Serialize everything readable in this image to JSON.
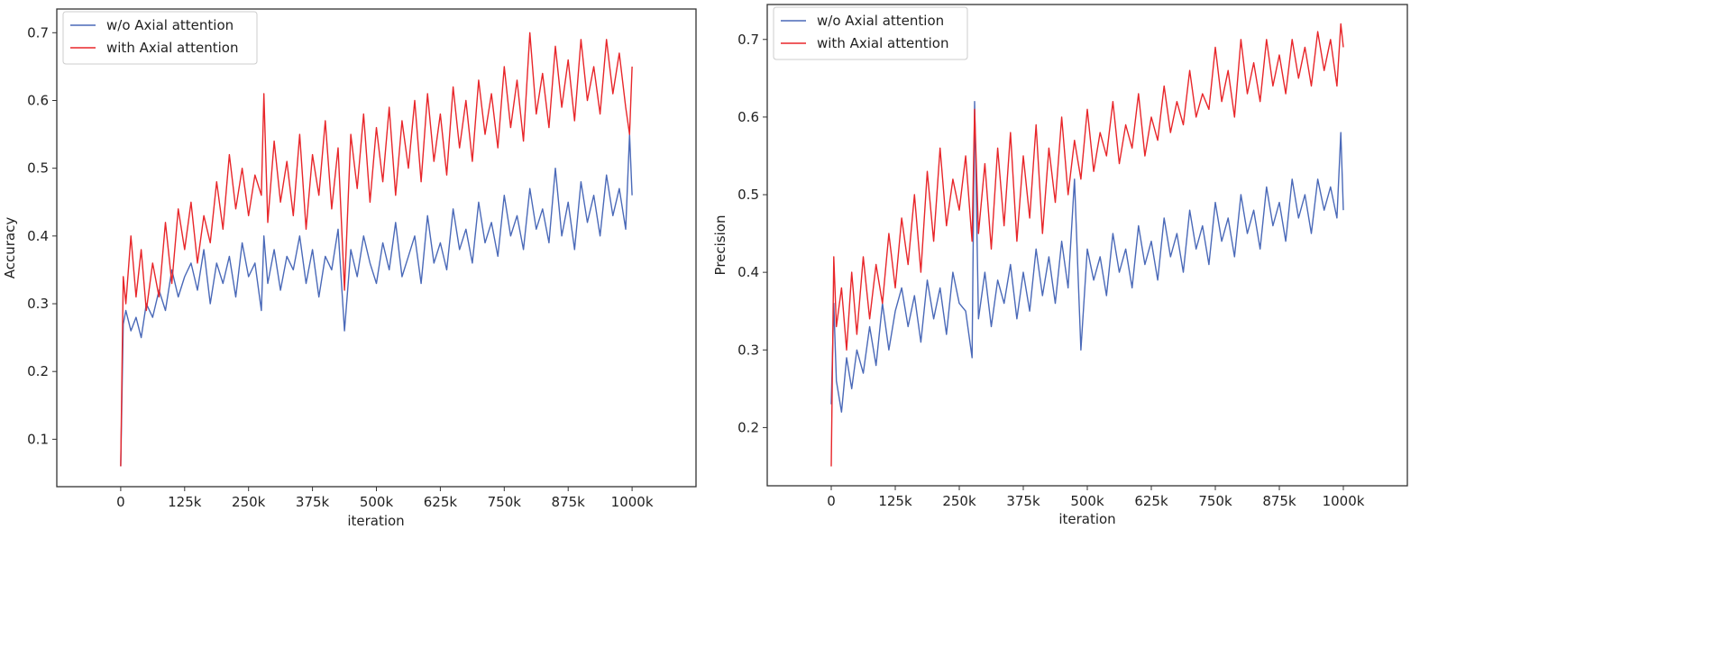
{
  "colors": {
    "blue": "#4a69b8",
    "red": "#e8262a",
    "axis": "#333333"
  },
  "chart_data": [
    {
      "type": "line",
      "xlabel": "iteration",
      "ylabel": "Accuracy",
      "xlim": [
        -125000,
        1125000
      ],
      "ylim": [
        0.03,
        0.735
      ],
      "x_ticks": [
        0,
        125000,
        250000,
        375000,
        500000,
        625000,
        750000,
        875000,
        1000000
      ],
      "x_tick_labels": [
        "0",
        "125k",
        "250k",
        "375k",
        "500k",
        "625k",
        "750k",
        "875k",
        "1000k"
      ],
      "y_ticks": [
        0.1,
        0.2,
        0.3,
        0.4,
        0.5,
        0.6,
        0.7
      ],
      "y_tick_labels": [
        "0.1",
        "0.2",
        "0.3",
        "0.4",
        "0.5",
        "0.6",
        "0.7"
      ],
      "legend_position": "top-left",
      "series": [
        {
          "name": "w/o Axial attention",
          "color": "#4a69b8",
          "x": [
            0,
            5000,
            10000,
            20000,
            30000,
            40000,
            50000,
            62500,
            75000,
            87500,
            100000,
            112500,
            125000,
            137500,
            150000,
            162500,
            175000,
            187500,
            200000,
            212500,
            225000,
            237500,
            250000,
            262500,
            275000,
            280000,
            287500,
            300000,
            312500,
            325000,
            337500,
            350000,
            362500,
            375000,
            387500,
            400000,
            412500,
            425000,
            437500,
            450000,
            462500,
            475000,
            487500,
            500000,
            512500,
            525000,
            537500,
            550000,
            562500,
            575000,
            587500,
            600000,
            612500,
            625000,
            637500,
            650000,
            662500,
            675000,
            687500,
            700000,
            712500,
            725000,
            737500,
            750000,
            762500,
            775000,
            787500,
            800000,
            812500,
            825000,
            837500,
            850000,
            862500,
            875000,
            887500,
            900000,
            912500,
            925000,
            937500,
            950000,
            962500,
            975000,
            987500,
            995000,
            1000000
          ],
          "values": [
            0.06,
            0.27,
            0.29,
            0.26,
            0.28,
            0.25,
            0.3,
            0.28,
            0.32,
            0.29,
            0.35,
            0.31,
            0.34,
            0.36,
            0.32,
            0.38,
            0.3,
            0.36,
            0.33,
            0.37,
            0.31,
            0.39,
            0.34,
            0.36,
            0.29,
            0.4,
            0.33,
            0.38,
            0.32,
            0.37,
            0.35,
            0.4,
            0.33,
            0.38,
            0.31,
            0.37,
            0.35,
            0.41,
            0.26,
            0.38,
            0.34,
            0.4,
            0.36,
            0.33,
            0.39,
            0.35,
            0.42,
            0.34,
            0.37,
            0.4,
            0.33,
            0.43,
            0.36,
            0.39,
            0.35,
            0.44,
            0.38,
            0.41,
            0.36,
            0.45,
            0.39,
            0.42,
            0.37,
            0.46,
            0.4,
            0.43,
            0.38,
            0.47,
            0.41,
            0.44,
            0.39,
            0.5,
            0.4,
            0.45,
            0.38,
            0.48,
            0.42,
            0.46,
            0.4,
            0.49,
            0.43,
            0.47,
            0.41,
            0.55,
            0.46
          ]
        },
        {
          "name": "with Axial attention",
          "color": "#e8262a",
          "x": [
            0,
            5000,
            10000,
            20000,
            30000,
            40000,
            50000,
            62500,
            75000,
            87500,
            100000,
            112500,
            125000,
            137500,
            150000,
            162500,
            175000,
            187500,
            200000,
            212500,
            225000,
            237500,
            250000,
            262500,
            275000,
            280000,
            287500,
            300000,
            312500,
            325000,
            337500,
            350000,
            362500,
            375000,
            387500,
            400000,
            412500,
            425000,
            437500,
            450000,
            462500,
            475000,
            487500,
            500000,
            512500,
            525000,
            537500,
            550000,
            562500,
            575000,
            587500,
            600000,
            612500,
            625000,
            637500,
            650000,
            662500,
            675000,
            687500,
            700000,
            712500,
            725000,
            737500,
            750000,
            762500,
            775000,
            787500,
            800000,
            812500,
            825000,
            837500,
            850000,
            862500,
            875000,
            887500,
            900000,
            912500,
            925000,
            937500,
            950000,
            962500,
            975000,
            987500,
            995000,
            1000000
          ],
          "values": [
            0.06,
            0.34,
            0.3,
            0.4,
            0.31,
            0.38,
            0.29,
            0.36,
            0.31,
            0.42,
            0.33,
            0.44,
            0.38,
            0.45,
            0.36,
            0.43,
            0.39,
            0.48,
            0.41,
            0.52,
            0.44,
            0.5,
            0.43,
            0.49,
            0.46,
            0.61,
            0.42,
            0.54,
            0.45,
            0.51,
            0.43,
            0.55,
            0.41,
            0.52,
            0.46,
            0.57,
            0.44,
            0.53,
            0.32,
            0.55,
            0.47,
            0.58,
            0.45,
            0.56,
            0.48,
            0.59,
            0.46,
            0.57,
            0.5,
            0.6,
            0.48,
            0.61,
            0.51,
            0.58,
            0.49,
            0.62,
            0.53,
            0.6,
            0.51,
            0.63,
            0.55,
            0.61,
            0.53,
            0.65,
            0.56,
            0.63,
            0.54,
            0.7,
            0.58,
            0.64,
            0.56,
            0.68,
            0.59,
            0.66,
            0.57,
            0.69,
            0.6,
            0.65,
            0.58,
            0.69,
            0.61,
            0.67,
            0.59,
            0.55,
            0.65
          ]
        }
      ]
    },
    {
      "type": "line",
      "xlabel": "iteration",
      "ylabel": "Precision",
      "xlim": [
        -125000,
        1125000
      ],
      "ylim": [
        0.125,
        0.745
      ],
      "x_ticks": [
        0,
        125000,
        250000,
        375000,
        500000,
        625000,
        750000,
        875000,
        1000000
      ],
      "x_tick_labels": [
        "0",
        "125k",
        "250k",
        "375k",
        "500k",
        "625k",
        "750k",
        "875k",
        "1000k"
      ],
      "y_ticks": [
        0.2,
        0.3,
        0.4,
        0.5,
        0.6,
        0.7
      ],
      "y_tick_labels": [
        "0.2",
        "0.3",
        "0.4",
        "0.5",
        "0.6",
        "0.7"
      ],
      "legend_position": "top-left",
      "series": [
        {
          "name": "w/o Axial attention",
          "color": "#4a69b8",
          "x": [
            0,
            5000,
            10000,
            20000,
            30000,
            40000,
            50000,
            62500,
            75000,
            87500,
            100000,
            112500,
            125000,
            137500,
            150000,
            162500,
            175000,
            187500,
            200000,
            212500,
            225000,
            237500,
            250000,
            262500,
            275000,
            280000,
            287500,
            300000,
            312500,
            325000,
            337500,
            350000,
            362500,
            375000,
            387500,
            400000,
            412500,
            425000,
            437500,
            450000,
            462500,
            475000,
            487500,
            500000,
            512500,
            525000,
            537500,
            550000,
            562500,
            575000,
            587500,
            600000,
            612500,
            625000,
            637500,
            650000,
            662500,
            675000,
            687500,
            700000,
            712500,
            725000,
            737500,
            750000,
            762500,
            775000,
            787500,
            800000,
            812500,
            825000,
            837500,
            850000,
            862500,
            875000,
            887500,
            900000,
            912500,
            925000,
            937500,
            950000,
            962500,
            975000,
            987500,
            995000,
            1000000
          ],
          "values": [
            0.23,
            0.36,
            0.26,
            0.22,
            0.29,
            0.25,
            0.3,
            0.27,
            0.33,
            0.28,
            0.36,
            0.3,
            0.35,
            0.38,
            0.33,
            0.37,
            0.31,
            0.39,
            0.34,
            0.38,
            0.32,
            0.4,
            0.36,
            0.35,
            0.29,
            0.62,
            0.34,
            0.4,
            0.33,
            0.39,
            0.36,
            0.41,
            0.34,
            0.4,
            0.35,
            0.43,
            0.37,
            0.42,
            0.36,
            0.44,
            0.38,
            0.52,
            0.3,
            0.43,
            0.39,
            0.42,
            0.37,
            0.45,
            0.4,
            0.43,
            0.38,
            0.46,
            0.41,
            0.44,
            0.39,
            0.47,
            0.42,
            0.45,
            0.4,
            0.48,
            0.43,
            0.46,
            0.41,
            0.49,
            0.44,
            0.47,
            0.42,
            0.5,
            0.45,
            0.48,
            0.43,
            0.51,
            0.46,
            0.49,
            0.44,
            0.52,
            0.47,
            0.5,
            0.45,
            0.52,
            0.48,
            0.51,
            0.47,
            0.58,
            0.48
          ]
        },
        {
          "name": "with Axial attention",
          "color": "#e8262a",
          "x": [
            0,
            5000,
            10000,
            20000,
            30000,
            40000,
            50000,
            62500,
            75000,
            87500,
            100000,
            112500,
            125000,
            137500,
            150000,
            162500,
            175000,
            187500,
            200000,
            212500,
            225000,
            237500,
            250000,
            262500,
            275000,
            280000,
            287500,
            300000,
            312500,
            325000,
            337500,
            350000,
            362500,
            375000,
            387500,
            400000,
            412500,
            425000,
            437500,
            450000,
            462500,
            475000,
            487500,
            500000,
            512500,
            525000,
            537500,
            550000,
            562500,
            575000,
            587500,
            600000,
            612500,
            625000,
            637500,
            650000,
            662500,
            675000,
            687500,
            700000,
            712500,
            725000,
            737500,
            750000,
            762500,
            775000,
            787500,
            800000,
            812500,
            825000,
            837500,
            850000,
            862500,
            875000,
            887500,
            900000,
            912500,
            925000,
            937500,
            950000,
            962500,
            975000,
            987500,
            995000,
            1000000
          ],
          "values": [
            0.15,
            0.42,
            0.33,
            0.38,
            0.3,
            0.4,
            0.32,
            0.42,
            0.34,
            0.41,
            0.36,
            0.45,
            0.38,
            0.47,
            0.41,
            0.5,
            0.4,
            0.53,
            0.44,
            0.56,
            0.46,
            0.52,
            0.48,
            0.55,
            0.44,
            0.61,
            0.45,
            0.54,
            0.43,
            0.56,
            0.46,
            0.58,
            0.44,
            0.55,
            0.47,
            0.59,
            0.45,
            0.56,
            0.49,
            0.6,
            0.5,
            0.57,
            0.52,
            0.61,
            0.53,
            0.58,
            0.55,
            0.62,
            0.54,
            0.59,
            0.56,
            0.63,
            0.55,
            0.6,
            0.57,
            0.64,
            0.58,
            0.62,
            0.59,
            0.66,
            0.6,
            0.63,
            0.61,
            0.69,
            0.62,
            0.66,
            0.6,
            0.7,
            0.63,
            0.67,
            0.62,
            0.7,
            0.64,
            0.68,
            0.63,
            0.7,
            0.65,
            0.69,
            0.64,
            0.71,
            0.66,
            0.7,
            0.64,
            0.72,
            0.69
          ]
        }
      ]
    }
  ]
}
